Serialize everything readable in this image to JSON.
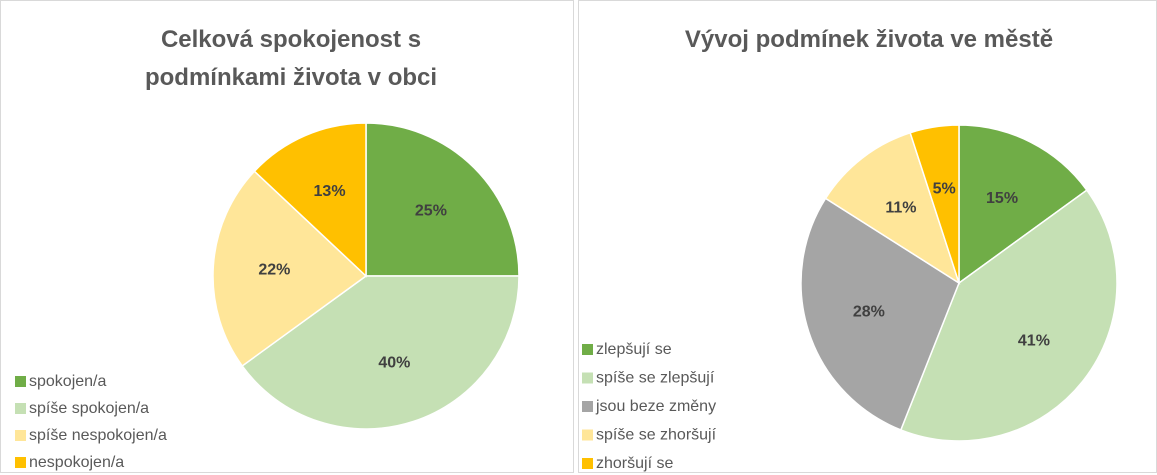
{
  "chart_data": [
    {
      "type": "pie",
      "title": "Celková spokojenost s podmínkami života v obci",
      "categories": [
        "spokojen/a",
        "spíše spokojen/a",
        "spíše nespokojen/a",
        "nespokojen/a"
      ],
      "values": [
        25,
        40,
        22,
        13
      ],
      "value_labels": [
        "25%",
        "40%",
        "22%",
        "13%"
      ],
      "colors": [
        "#70ad47",
        "#c5e0b4",
        "#ffe699",
        "#ffc000"
      ]
    },
    {
      "type": "pie",
      "title": "Vývoj podmínek života ve městě",
      "categories": [
        "zlepšují se",
        "spíše se zlepšují",
        "jsou beze změny",
        "spíše se zhoršují",
        "zhoršují se"
      ],
      "values": [
        15,
        41,
        28,
        11,
        5
      ],
      "value_labels": [
        "15%",
        "41%",
        "28%",
        "11%",
        "5%"
      ],
      "colors": [
        "#70ad47",
        "#c5e0b4",
        "#a5a5a5",
        "#ffe699",
        "#ffc000"
      ]
    }
  ]
}
